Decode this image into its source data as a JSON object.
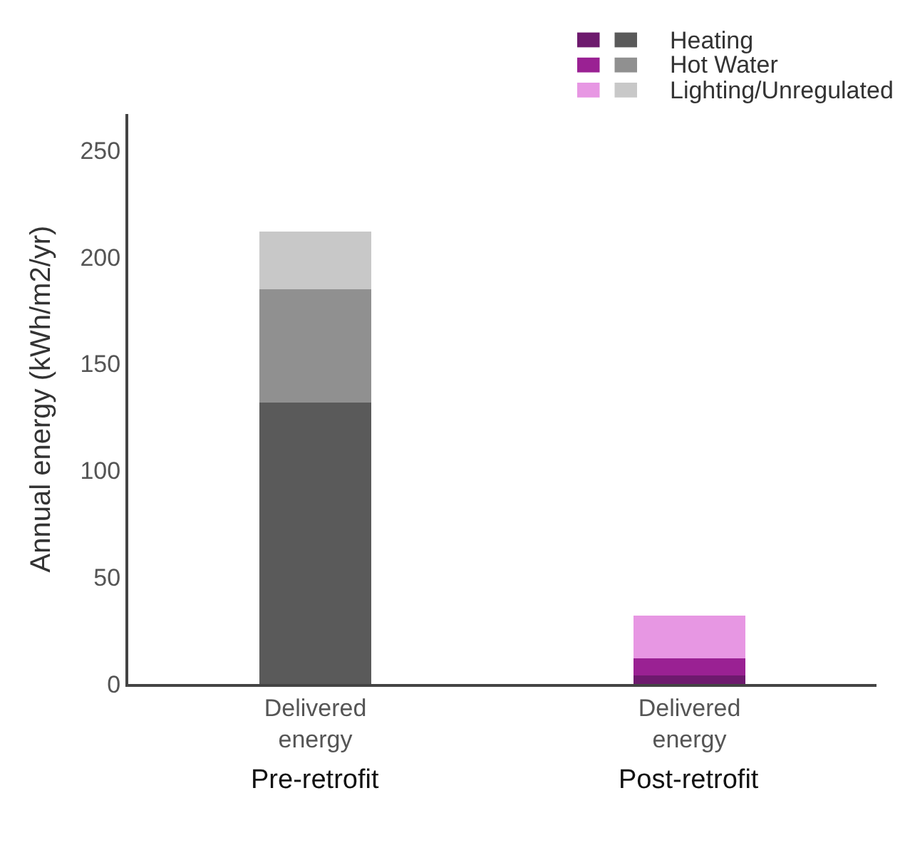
{
  "chart_data": {
    "type": "bar",
    "stacked": true,
    "ylabel": "Annual energy (kWh/m2/yr)",
    "categories": [
      "Delivered energy",
      "Delivered energy"
    ],
    "annotations": [
      "Pre-retrofit",
      "Post-retrofit"
    ],
    "series": [
      {
        "name": "Heating",
        "colors": [
          "#5a5a5a",
          "#6e1a6e"
        ],
        "values": [
          132,
          4
        ]
      },
      {
        "name": "Hot Water",
        "colors": [
          "#909090",
          "#9a2193"
        ],
        "values": [
          53,
          8
        ]
      },
      {
        "name": "Lighting/Unregulated",
        "colors": [
          "#c8c8c8",
          "#e797e3"
        ],
        "values": [
          27,
          20
        ]
      }
    ],
    "ylim": [
      0,
      267
    ],
    "yticks": [
      0,
      50,
      100,
      150,
      200,
      250
    ],
    "legend": "top right"
  }
}
